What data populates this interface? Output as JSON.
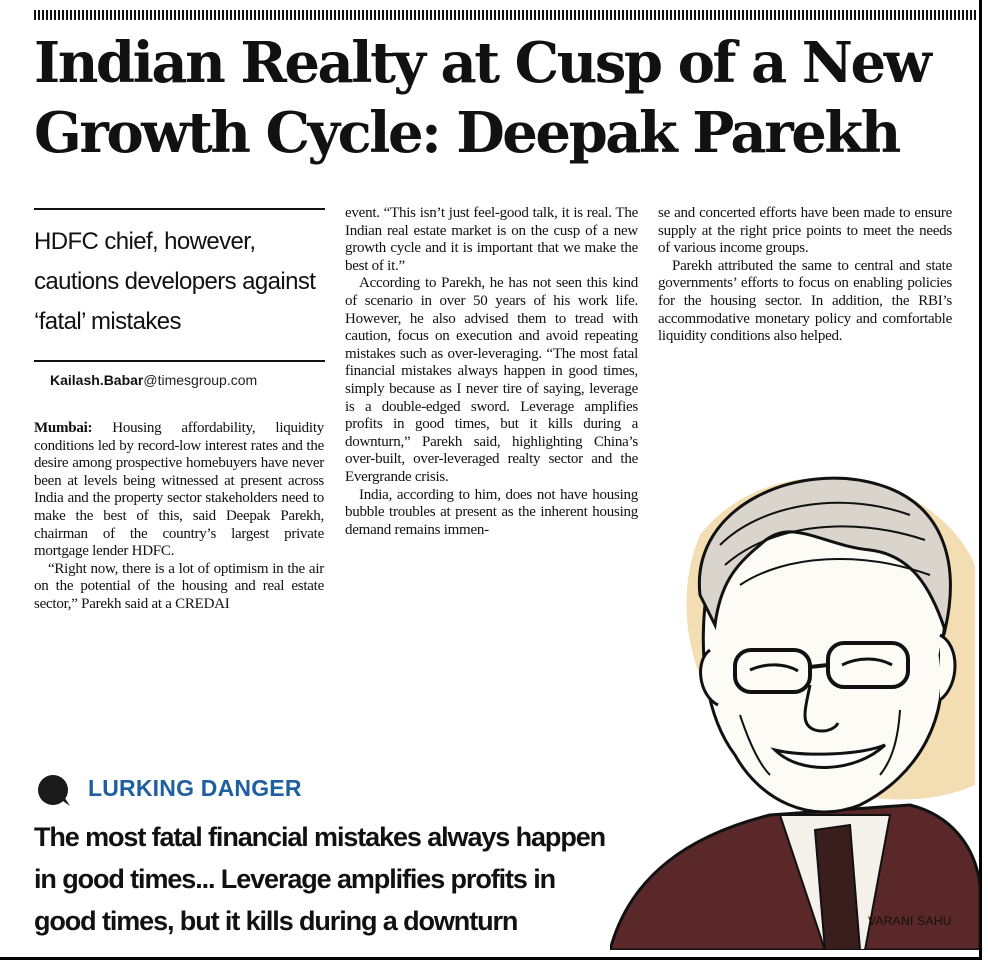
{
  "article": {
    "headline": "Indian Realty at Cusp of a New Growth Cycle: Deepak Parekh",
    "deck": "HDFC chief, however, cautions developers against ‘fatal’ mistakes",
    "byline": {
      "name": "Kailash.Babar",
      "domain": "@timesgroup.com"
    },
    "dateline": "Mumbai:",
    "col1": {
      "p1": "Housing affordability, liquidity conditions led by record-low interest rates and the desire among prospective homebuyers have never been at levels being witnessed at present across India and the property sector stakeholders need to make the best of this, said Deepak Parekh, chairman of the country’s largest private mortgage lender HDFC.",
      "p2": "“Right now, there is a lot of optimism in the air on the potential of the housing and real estate sector,” Parekh said at a CREDAI"
    },
    "col2": {
      "p1": "event. “This isn’t just feel-good talk, it is real. The Indian real estate market is on the cusp of a new growth cycle and it is important that we make the best of it.”",
      "p2": "According to Parekh, he has not seen this kind of scenario in over 50 years of his work life. However, he also advised them to tread with caution, focus on execution and avoid repeating mistakes such as over-leveraging. “The most fatal financial mistakes always happen in good times, simply because as I never tire of saying, leverage is a double-edged sword. Leverage amplifies profits in good times, but it kills during a downturn,” Parekh said, highlighting China’s over-built, over-leveraged realty sector and the Evergrande crisis.",
      "p3": "India, according to him, does not have housing bubble troubles at present as the inherent housing demand remains immen-"
    },
    "col3": {
      "p1": "se and concerted efforts have been made to ensure supply at the right price points to meet the needs of various income groups.",
      "p2": "Parekh attributed the same to central and state governments’ efforts to focus on enabling policies for the housing sector. In addition, the RBI’s accommodative monetary policy and comfortable liquidity conditions also helped."
    }
  },
  "pullquote": {
    "kicker": "LURKING DANGER",
    "line1": "The most fatal financial mistakes always happen",
    "line2": "in good times... Leverage amplifies profits in",
    "line3": "good times, but it kills during a downturn"
  },
  "illustration": {
    "credit": "VARANI SAHU"
  },
  "colors": {
    "kicker": "#1d5fa0",
    "illustration_bg": "#f3ddb2",
    "text": "#111111"
  }
}
